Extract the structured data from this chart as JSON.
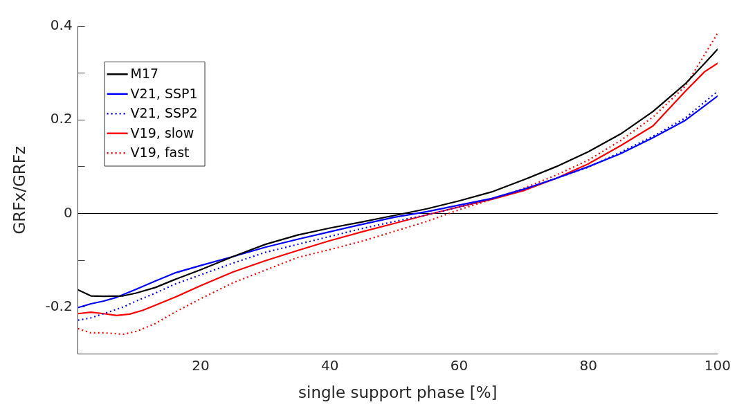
{
  "chart_data": {
    "type": "line",
    "xlabel": "single support phase [%]",
    "ylabel": "GRFx/GRFz",
    "xlim": [
      1,
      100
    ],
    "xticks": [
      20,
      40,
      60,
      80,
      100
    ],
    "ylim": [
      -0.3,
      0.4
    ],
    "yticks": [
      {
        "value": -0.3,
        "label": null
      },
      -0.2,
      {
        "value": -0.1,
        "label": null
      },
      0,
      {
        "value": 0.1,
        "label": null
      },
      0.2,
      {
        "value": 0.3,
        "label": null
      },
      0.4
    ],
    "grid": false,
    "legend": "top left",
    "marker": "none",
    "ref_lines": [
      {
        "axis": "y",
        "value": 0,
        "color": "#000000",
        "line_style": "solid"
      }
    ],
    "series": [
      {
        "name": "M17",
        "color": "#000000",
        "line_style": "solid",
        "x": [
          1,
          3,
          5,
          8,
          10,
          13,
          16,
          20,
          25,
          30,
          35,
          40,
          45,
          50,
          55,
          60,
          65,
          70,
          75,
          80,
          85,
          90,
          95,
          98,
          100
        ],
        "values": [
          -0.163,
          -0.176,
          -0.177,
          -0.176,
          -0.17,
          -0.158,
          -0.141,
          -0.12,
          -0.092,
          -0.066,
          -0.046,
          -0.031,
          -0.018,
          -0.004,
          0.01,
          0.027,
          0.046,
          0.072,
          0.1,
          0.132,
          0.17,
          0.218,
          0.277,
          0.321,
          0.351
        ]
      },
      {
        "name": "V21, SSP1",
        "color": "#0000ff",
        "line_style": "solid",
        "x": [
          1,
          3,
          5,
          7,
          10,
          13,
          16,
          20,
          25,
          30,
          35,
          40,
          45,
          50,
          55,
          60,
          65,
          70,
          75,
          80,
          85,
          90,
          95,
          100
        ],
        "values": [
          -0.201,
          -0.193,
          -0.187,
          -0.179,
          -0.162,
          -0.144,
          -0.127,
          -0.111,
          -0.092,
          -0.072,
          -0.055,
          -0.039,
          -0.023,
          -0.008,
          0.004,
          0.018,
          0.032,
          0.052,
          0.075,
          0.1,
          0.128,
          0.162,
          0.199,
          0.251
        ]
      },
      {
        "name": "V21, SSP2",
        "color": "#0000ff",
        "line_style": "dotted",
        "x": [
          1,
          3,
          5,
          8,
          10,
          13,
          16,
          20,
          25,
          30,
          35,
          40,
          45,
          50,
          55,
          60,
          65,
          70,
          75,
          80,
          85,
          90,
          95,
          100
        ],
        "values": [
          -0.228,
          -0.223,
          -0.214,
          -0.2,
          -0.187,
          -0.17,
          -0.151,
          -0.131,
          -0.106,
          -0.083,
          -0.066,
          -0.049,
          -0.032,
          -0.017,
          -0.003,
          0.014,
          0.031,
          0.051,
          0.075,
          0.099,
          0.131,
          0.165,
          0.204,
          0.261
        ]
      },
      {
        "name": "V19, slow",
        "color": "#ff0000",
        "line_style": "solid",
        "x": [
          1,
          3,
          5,
          7,
          9,
          11,
          13,
          16,
          20,
          25,
          30,
          35,
          40,
          45,
          50,
          55,
          60,
          65,
          70,
          75,
          80,
          85,
          90,
          95,
          98,
          100
        ],
        "values": [
          -0.214,
          -0.211,
          -0.214,
          -0.218,
          -0.215,
          -0.207,
          -0.196,
          -0.179,
          -0.154,
          -0.125,
          -0.101,
          -0.079,
          -0.058,
          -0.039,
          -0.021,
          -0.003,
          0.014,
          0.03,
          0.049,
          0.075,
          0.106,
          0.145,
          0.187,
          0.261,
          0.303,
          0.321
        ]
      },
      {
        "name": "V19, fast",
        "color": "#ff0000",
        "line_style": "dotted",
        "x": [
          1,
          3,
          5,
          8,
          10,
          13,
          16,
          20,
          25,
          30,
          35,
          40,
          45,
          50,
          55,
          60,
          65,
          70,
          75,
          80,
          85,
          90,
          95,
          100
        ],
        "values": [
          -0.246,
          -0.255,
          -0.255,
          -0.258,
          -0.252,
          -0.235,
          -0.211,
          -0.182,
          -0.148,
          -0.121,
          -0.094,
          -0.077,
          -0.059,
          -0.038,
          -0.017,
          0.008,
          0.03,
          0.054,
          0.082,
          0.114,
          0.156,
          0.206,
          0.272,
          0.385
        ]
      }
    ]
  }
}
